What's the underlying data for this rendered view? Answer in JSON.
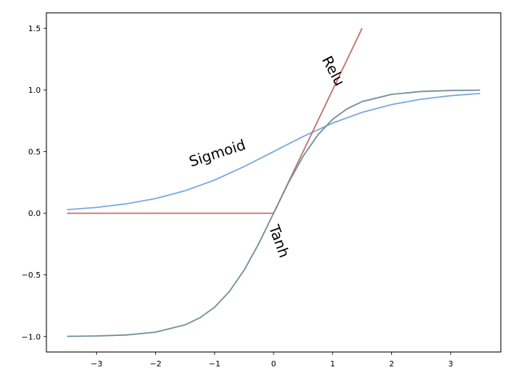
{
  "chart_data": {
    "type": "line",
    "title": "",
    "xlabel": "",
    "ylabel": "",
    "xlim": [
      -3.85,
      3.85
    ],
    "ylim": [
      -1.125,
      1.625
    ],
    "grid": false,
    "legend": "none",
    "xticks": [
      -3,
      -2,
      -1,
      0,
      1,
      2,
      3
    ],
    "yticks": [
      -1.0,
      -0.5,
      0.0,
      0.5,
      1.0,
      1.5
    ],
    "xtick_labels": [
      "−3",
      "−2",
      "−1",
      "0",
      "1",
      "2",
      "3"
    ],
    "ytick_labels": [
      "−1.0",
      "−0.5",
      "0.0",
      "0.5",
      "1.0",
      "1.5"
    ],
    "series": [
      {
        "key": "sigmoid",
        "color": "#7aaadf",
        "x": [
          -3.5,
          -3.0,
          -2.5,
          -2.0,
          -1.5,
          -1.0,
          -0.5,
          0.0,
          0.5,
          1.0,
          1.5,
          2.0,
          2.5,
          3.0,
          3.5
        ],
        "y": [
          0.029,
          0.047,
          0.076,
          0.119,
          0.182,
          0.269,
          0.378,
          0.5,
          0.622,
          0.731,
          0.818,
          0.881,
          0.924,
          0.953,
          0.971
        ]
      },
      {
        "key": "relu",
        "color": "#c0736d",
        "x": [
          -3.5,
          0.0,
          1.5
        ],
        "y": [
          0.0,
          0.0,
          1.5
        ]
      },
      {
        "key": "tanh",
        "color": "#76909a",
        "x": [
          -3.5,
          -3.0,
          -2.5,
          -2.0,
          -1.5,
          -1.25,
          -1.0,
          -0.75,
          -0.5,
          -0.25,
          0.0,
          0.25,
          0.5,
          0.75,
          1.0,
          1.25,
          1.5,
          2.0,
          2.5,
          3.0,
          3.5
        ],
        "y": [
          -0.998,
          -0.995,
          -0.987,
          -0.964,
          -0.905,
          -0.848,
          -0.762,
          -0.635,
          -0.462,
          -0.245,
          0.0,
          0.245,
          0.462,
          0.635,
          0.762,
          0.848,
          0.905,
          0.964,
          0.987,
          0.995,
          0.998
        ]
      }
    ],
    "annotations": [
      {
        "text": "Sigmoid",
        "x": -0.95,
        "y": 0.48,
        "rotation": 18
      },
      {
        "text": "Relu",
        "x": 1.0,
        "y": 1.15,
        "rotation": -62
      },
      {
        "text": "Tanh",
        "x": 0.08,
        "y": -0.23,
        "rotation": -70
      }
    ]
  }
}
